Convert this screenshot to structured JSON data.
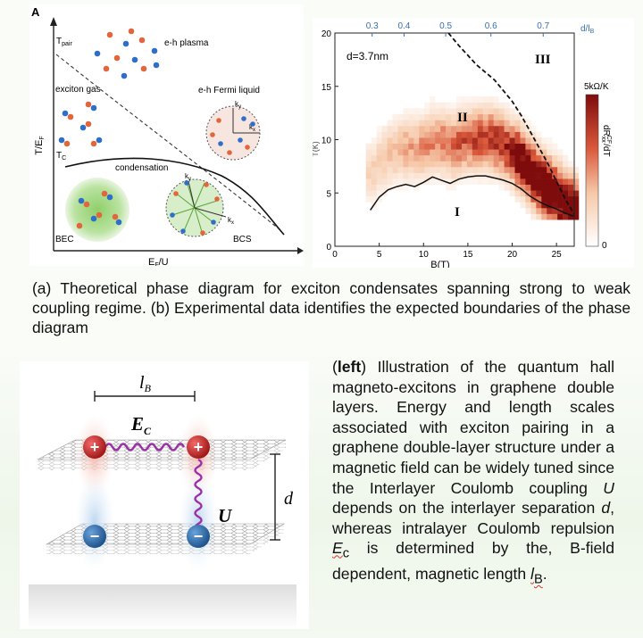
{
  "panel_a": {
    "label": "A",
    "y_axis": "T/E",
    "y_sub": "F",
    "x_axis": "E",
    "x_sub": "F",
    "x_tail": "/U",
    "t_pair": "T",
    "t_pair_sub": "pair",
    "t_c": "T",
    "t_c_sub": "C",
    "eh_plasma": "e-h plasma",
    "exciton_gas": "exciton gas",
    "eh_fermi_liquid": "e-h Fermi liquid",
    "condensation": "condensation",
    "bec": "BEC",
    "bcs": "BCS",
    "kx": "k",
    "ky": "k",
    "kx_sub": "x",
    "ky_sub": "y"
  },
  "panel_b": {
    "annotation": "d=3.7nm",
    "region_1": "I",
    "region_2": "II",
    "region_3": "III",
    "colorbar_max": "5kΩ/K",
    "colorbar_min": "0",
    "colorbar_label": "dR",
    "colorbar_label_sub": "xx",
    "colorbar_label_sup": "CF",
    "colorbar_label_tail": "/dT",
    "y_axis_partial": "T(K)",
    "top_axis_label": "d/l",
    "top_axis_label_sub": "B",
    "colors": {
      "low": "#ffffff",
      "mid": "#f0a27c",
      "high": "#8b0f0f",
      "top_axis": "#3a6fb5"
    }
  },
  "chart_data": {
    "type": "heatmap",
    "xlabel": "B(T)",
    "ylabel": "T(K)",
    "xlim": [
      0,
      27
    ],
    "ylim": [
      0,
      20
    ],
    "x_ticks": [
      "0",
      "5",
      "10",
      "15",
      "20",
      "25"
    ],
    "y_ticks": [
      "0",
      "5",
      "10",
      "15",
      "20"
    ],
    "top_ticks": [
      "0.3",
      "0.4",
      "0.5",
      "0.6",
      "0.7"
    ],
    "top_tick_B": [
      4.2,
      7.8,
      12.5,
      17.6,
      23.5
    ],
    "colorbar_range": [
      0,
      5
    ],
    "boundary_I_II": {
      "x": [
        4,
        5,
        6,
        7,
        8,
        9,
        10,
        11,
        12,
        13,
        14,
        15,
        16,
        17,
        18,
        19,
        20,
        21,
        22,
        23,
        24,
        25,
        26,
        27
      ],
      "y": [
        3.4,
        4.6,
        5.3,
        5.6,
        5.8,
        5.6,
        6.0,
        6.5,
        6.2,
        5.9,
        6.3,
        6.5,
        6.6,
        6.6,
        6.4,
        6.2,
        5.9,
        5.4,
        4.7,
        4.2,
        3.8,
        3.5,
        3.1,
        2.8
      ]
    },
    "boundary_II_III": {
      "x": [
        12.8,
        14,
        16,
        18,
        20,
        21,
        22,
        23,
        24,
        25,
        26,
        27
      ],
      "y": [
        20,
        18.8,
        17,
        15.6,
        13.6,
        12.3,
        10.8,
        9.3,
        7.8,
        6.1,
        4.4,
        3.0
      ]
    }
  },
  "caption": {
    "text": "(a) Theoretical phase diagram for exciton condensates spanning strong to weak coupling regime.  (b) Experimental data identifies the expected boundaries of the phase diagram"
  },
  "illustration": {
    "lb": "l",
    "lb_sub": "B",
    "ec": "E",
    "ec_sub": "C",
    "u": "U",
    "d": "d",
    "plus": "+",
    "minus": "−"
  },
  "description": {
    "left_word": "left",
    "p1": "Illustration of the quantum hall magneto-excitons in graphene double layers.  Energy and length scales associated with exciton pairing in a graphene double-layer structure under a magnetic field can be widely tuned since the Interlayer Coulomb coupling ",
    "u": "U",
    "p2": " depends on the interlayer separation ",
    "d": "d",
    "p3": ", whereas intralayer Coulomb repulsion ",
    "ec": "E",
    "ec_sub": "c",
    "p4": " is determined by the,  B-field dependent, magnetic length ",
    "lb": "l",
    "lb_sub": "B",
    "end": "."
  }
}
